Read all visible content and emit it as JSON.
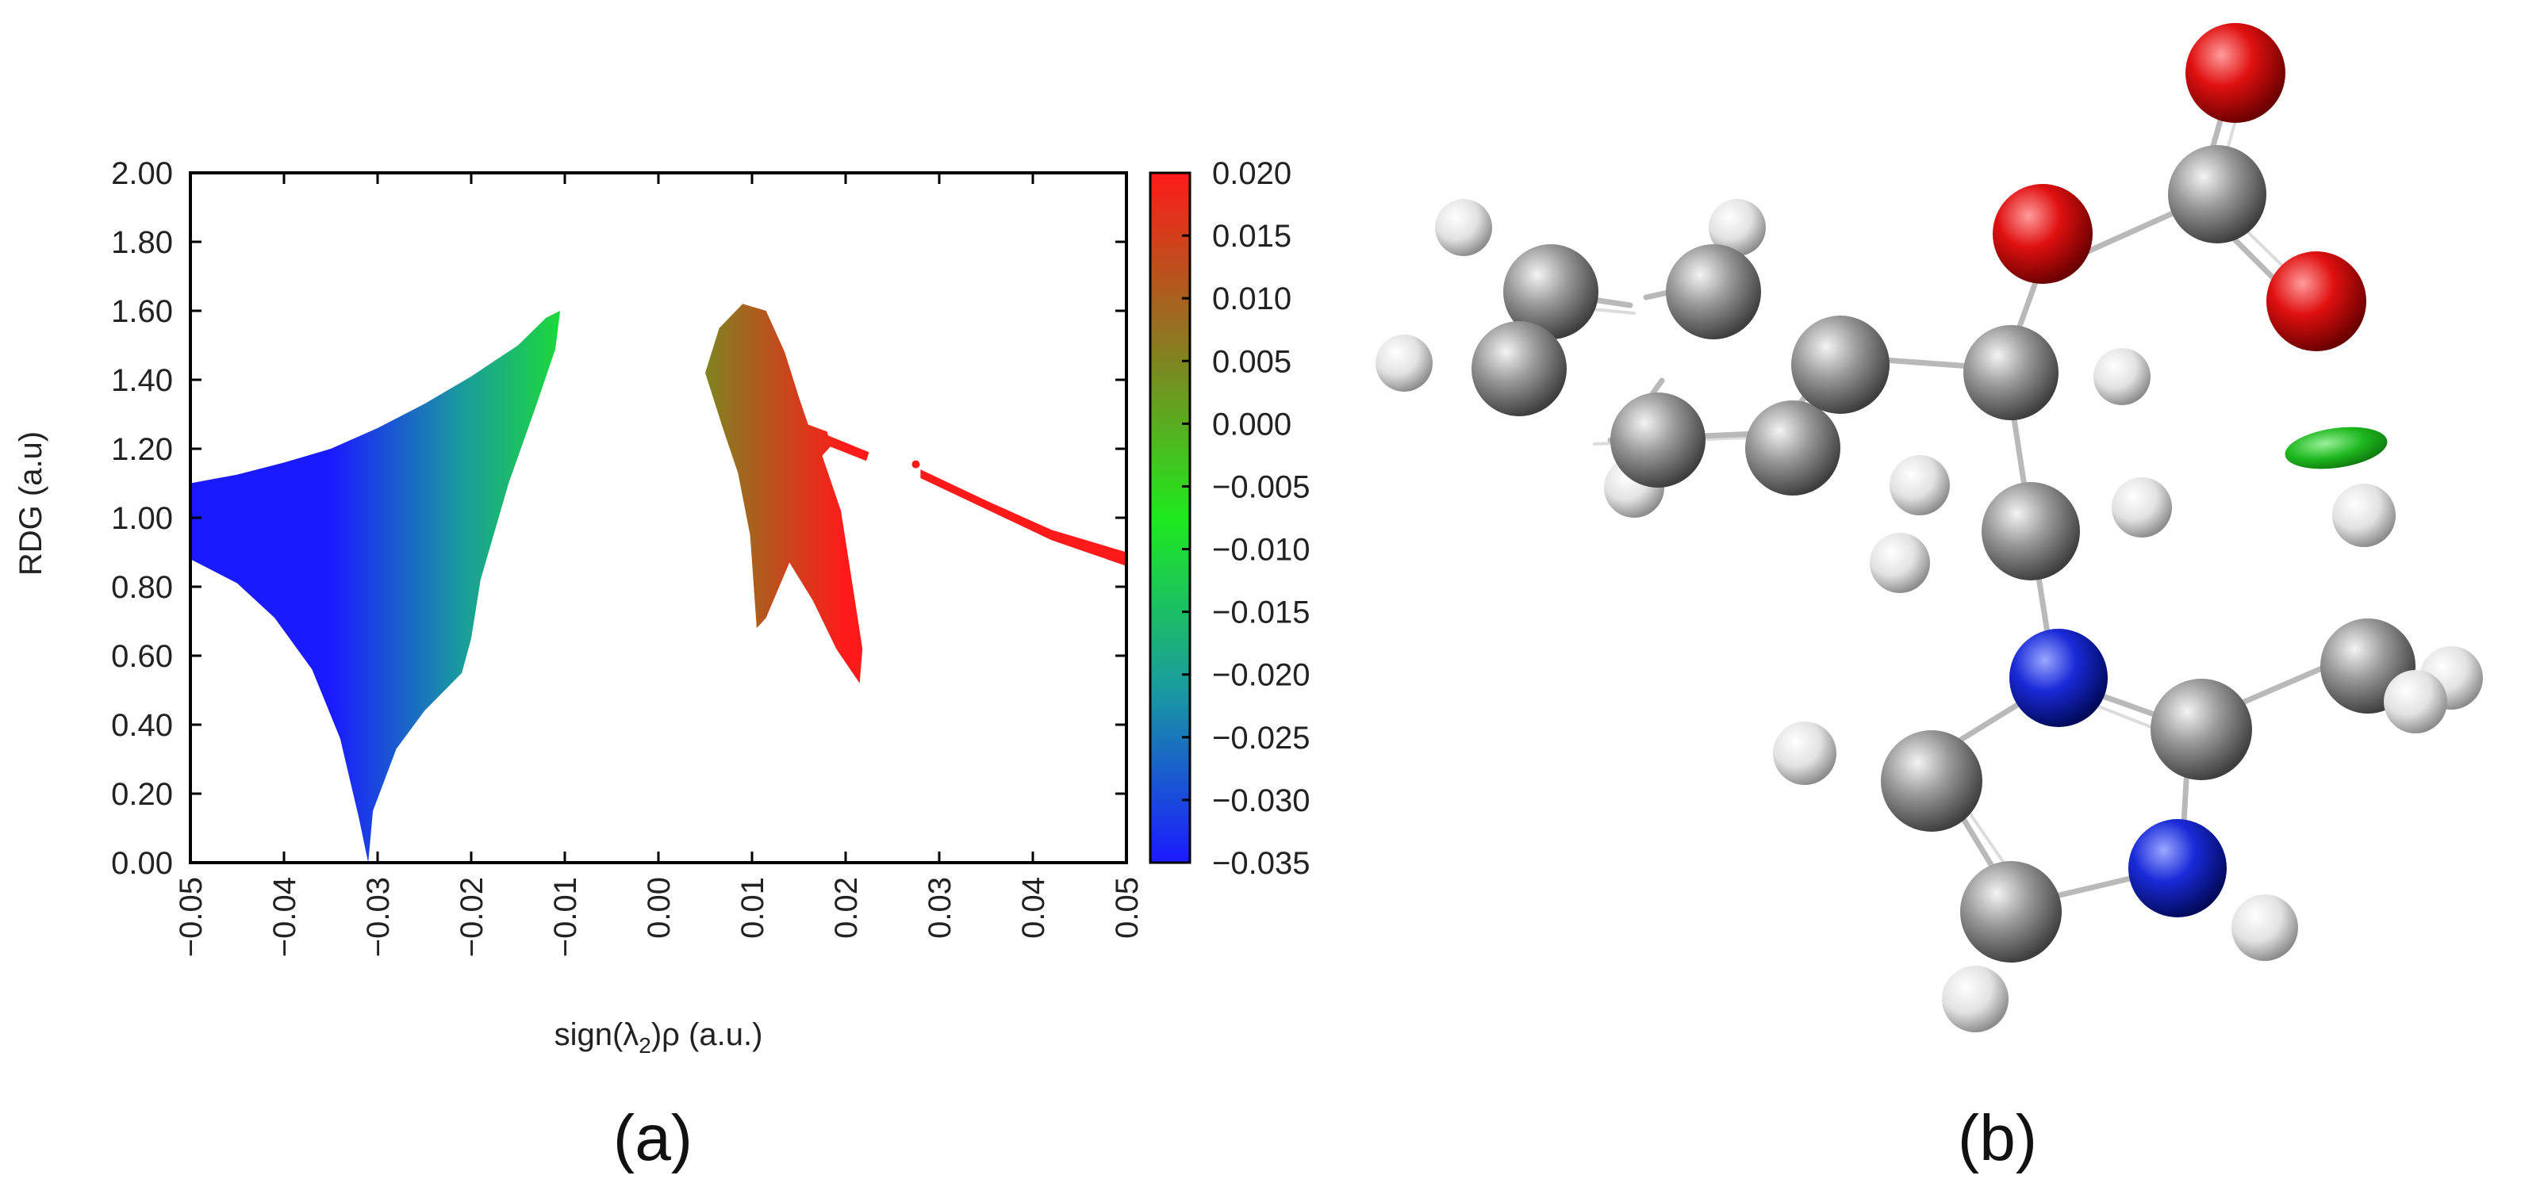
{
  "panels": {
    "a": {
      "label": "(a)"
    },
    "b": {
      "label": "(b)"
    }
  },
  "chart_data": {
    "type": "scatter",
    "title": "",
    "xlabel_parts": {
      "pre": "sign(λ",
      "sub": "2",
      "post": ")ρ (a.u.)"
    },
    "ylabel": "RDG (a.u)",
    "xlim": [
      -0.05,
      0.05
    ],
    "ylim": [
      0.0,
      2.0
    ],
    "x_ticks": [
      "−0.05",
      "−0.04",
      "−0.03",
      "−0.02",
      "−0.01",
      "0.00",
      "0.01",
      "0.02",
      "0.03",
      "0.04",
      "0.05"
    ],
    "x_tick_values": [
      -0.05,
      -0.04,
      -0.03,
      -0.02,
      -0.01,
      0.0,
      0.01,
      0.02,
      0.03,
      0.04,
      0.05
    ],
    "y_ticks": [
      "0.00",
      "0.20",
      "0.40",
      "0.60",
      "0.80",
      "1.00",
      "1.20",
      "1.40",
      "1.60",
      "1.80",
      "2.00"
    ],
    "y_tick_values": [
      0.0,
      0.2,
      0.4,
      0.6,
      0.8,
      1.0,
      1.2,
      1.4,
      1.6,
      1.8,
      2.0
    ],
    "grid": false,
    "colorbar": {
      "range": [
        -0.035,
        0.02
      ],
      "colors": [
        "#1a1aff",
        "#1a9aa0",
        "#1eea1e",
        "#8a7a20",
        "#ff1a1a"
      ],
      "ticks": [
        "0.020",
        "0.015",
        "0.010",
        "0.005",
        "0.000",
        "−0.005",
        "−0.010",
        "−0.015",
        "−0.020",
        "−0.025",
        "−0.030",
        "−0.035"
      ],
      "tick_values": [
        0.02,
        0.015,
        0.01,
        0.005,
        0.0,
        -0.005,
        -0.01,
        -0.015,
        -0.02,
        -0.025,
        -0.03,
        -0.035
      ]
    },
    "regions": [
      {
        "id": "attractive-spike",
        "points": [
          [
            -0.05,
            1.1
          ],
          [
            -0.045,
            1.125
          ],
          [
            -0.04,
            1.16
          ],
          [
            -0.035,
            1.2
          ],
          [
            -0.03,
            1.26
          ],
          [
            -0.025,
            1.33
          ],
          [
            -0.02,
            1.41
          ],
          [
            -0.015,
            1.5
          ],
          [
            -0.012,
            1.58
          ],
          [
            -0.0105,
            1.6
          ],
          [
            -0.011,
            1.49
          ],
          [
            -0.013,
            1.33
          ],
          [
            -0.016,
            1.1
          ],
          [
            -0.019,
            0.82
          ],
          [
            -0.02,
            0.65
          ],
          [
            -0.021,
            0.55
          ],
          [
            -0.025,
            0.44
          ],
          [
            -0.028,
            0.33
          ],
          [
            -0.0305,
            0.15
          ],
          [
            -0.031,
            0.0
          ],
          [
            -0.032,
            0.13
          ],
          [
            -0.034,
            0.36
          ],
          [
            -0.037,
            0.56
          ],
          [
            -0.041,
            0.71
          ],
          [
            -0.045,
            0.81
          ],
          [
            -0.05,
            0.88
          ]
        ]
      },
      {
        "id": "steric-spike",
        "points": [
          [
            0.005,
            1.42
          ],
          [
            0.0065,
            1.55
          ],
          [
            0.009,
            1.62
          ],
          [
            0.0115,
            1.6
          ],
          [
            0.0135,
            1.48
          ],
          [
            0.015,
            1.35
          ],
          [
            0.016,
            1.27
          ],
          [
            0.018,
            1.25
          ],
          [
            0.0185,
            1.21
          ],
          [
            0.0175,
            1.18
          ],
          [
            0.0195,
            1.02
          ],
          [
            0.021,
            0.76
          ],
          [
            0.0218,
            0.62
          ],
          [
            0.0215,
            0.52
          ],
          [
            0.019,
            0.62
          ],
          [
            0.0165,
            0.76
          ],
          [
            0.014,
            0.87
          ],
          [
            0.0115,
            0.71
          ],
          [
            0.0105,
            0.68
          ],
          [
            0.0098,
            0.95
          ],
          [
            0.0085,
            1.13
          ],
          [
            0.007,
            1.25
          ]
        ]
      },
      {
        "id": "tail-bar",
        "points": [
          [
            0.018,
            1.24
          ],
          [
            0.0225,
            1.19
          ],
          [
            0.0222,
            1.165
          ],
          [
            0.018,
            1.21
          ]
        ]
      },
      {
        "id": "tail-end",
        "points": [
          [
            0.028,
            1.14
          ],
          [
            0.035,
            1.05
          ],
          [
            0.042,
            0.965
          ],
          [
            0.05,
            0.9
          ],
          [
            0.05,
            0.86
          ],
          [
            0.042,
            0.935
          ],
          [
            0.035,
            1.025
          ],
          [
            0.028,
            1.115
          ]
        ]
      }
    ]
  }
}
